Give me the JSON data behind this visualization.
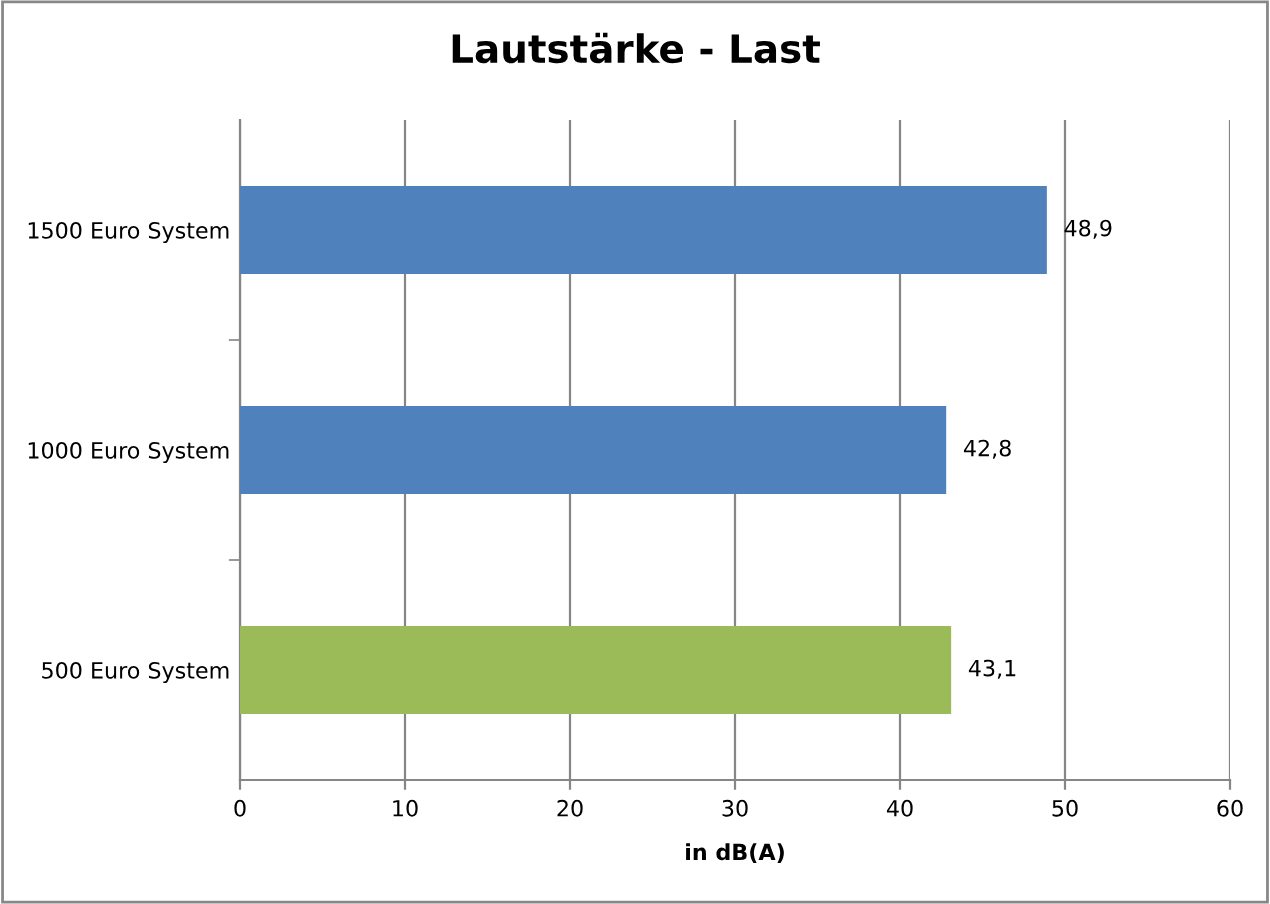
{
  "chart_data": {
    "type": "bar",
    "orientation": "horizontal",
    "title": "Lautstärke - Last",
    "xlabel": "in dB(A)",
    "categories": [
      "1500 Euro System",
      "1000 Euro System",
      "500 Euro System"
    ],
    "values": [
      48.9,
      42.8,
      43.1
    ],
    "colors": [
      "#4f81bd",
      "#4f81bd",
      "#9bbb59"
    ],
    "value_labels": [
      "48,9",
      "42,8",
      "43,1"
    ],
    "xlim": [
      0,
      60
    ],
    "xticks": [
      0,
      10,
      20,
      30,
      40,
      50,
      60
    ],
    "grid": "x"
  }
}
